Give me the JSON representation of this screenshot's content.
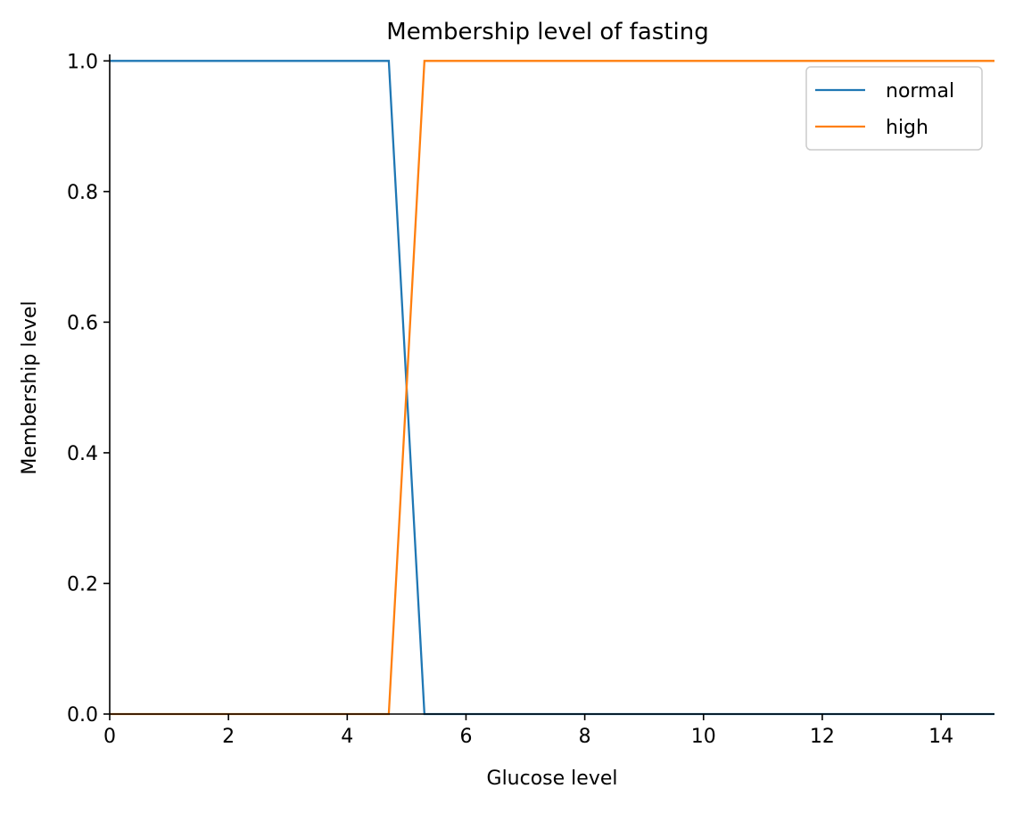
{
  "chart_data": {
    "type": "line",
    "title": "Membership level of fasting",
    "xlabel": "Glucose level",
    "ylabel": "Membership level",
    "xlim": [
      0,
      14.9
    ],
    "ylim": [
      0,
      1.01
    ],
    "xticks": [
      {
        "value": 0,
        "label": "0"
      },
      {
        "value": 2,
        "label": "2"
      },
      {
        "value": 4,
        "label": "4"
      },
      {
        "value": 6,
        "label": "6"
      },
      {
        "value": 8,
        "label": "8"
      },
      {
        "value": 10,
        "label": "10"
      },
      {
        "value": 12,
        "label": "12"
      },
      {
        "value": 14,
        "label": "14"
      }
    ],
    "yticks": [
      {
        "value": 0.0,
        "label": "0.0"
      },
      {
        "value": 0.2,
        "label": "0.2"
      },
      {
        "value": 0.4,
        "label": "0.4"
      },
      {
        "value": 0.6,
        "label": "0.6"
      },
      {
        "value": 0.8,
        "label": "0.8"
      },
      {
        "value": 1.0,
        "label": "1.0"
      }
    ],
    "grid": false,
    "spines": "left-bottom",
    "legend": {
      "placement": "top-right"
    },
    "series": [
      {
        "name": "normal",
        "color": "#1f77b4",
        "points": [
          [
            0,
            1.0
          ],
          [
            4.7,
            1.0
          ],
          [
            5.3,
            0.0
          ],
          [
            14.9,
            0.0
          ]
        ]
      },
      {
        "name": "high",
        "color": "#ff7f0e",
        "points": [
          [
            0,
            0.0
          ],
          [
            4.7,
            0.0
          ],
          [
            5.3,
            1.0
          ],
          [
            14.9,
            1.0
          ]
        ]
      }
    ]
  }
}
